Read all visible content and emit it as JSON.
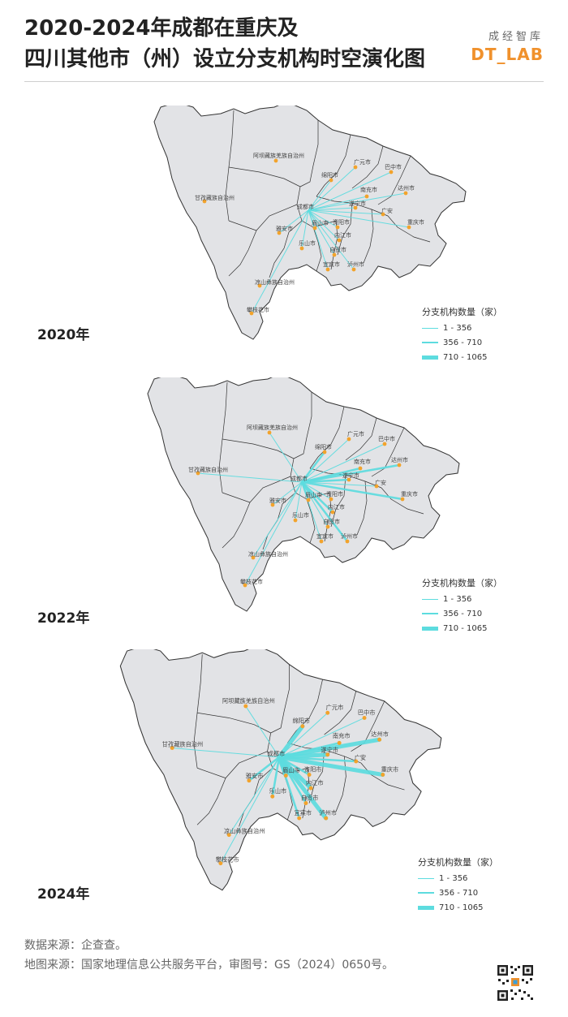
{
  "header": {
    "title_line1": "2020-2024年成都在重庆及",
    "title_line2": "四川其他市（州）设立分支机构时空演化图",
    "brand_cn": "成经智库",
    "brand_en": "DT_LAB"
  },
  "colors": {
    "map_fill": "#e2e3e6",
    "border": "#333333",
    "flow_line": "#5ddcdf",
    "dot": "#f2a32c",
    "brand": "#f0912c"
  },
  "map_labels": [
    {
      "id": "aba",
      "text": "阿坝藏族羌族自治州"
    },
    {
      "id": "garze",
      "text": "甘孜藏族自治州"
    },
    {
      "id": "guangyuan",
      "text": "广元市"
    },
    {
      "id": "bazhong",
      "text": "巴中市"
    },
    {
      "id": "mianyang",
      "text": "绵阳市"
    },
    {
      "id": "nanchong",
      "text": "南充市"
    },
    {
      "id": "dazhou",
      "text": "达州市"
    },
    {
      "id": "chengdu",
      "text": "成都市"
    },
    {
      "id": "suining",
      "text": "遂宁市"
    },
    {
      "id": "guangan",
      "text": "广安"
    },
    {
      "id": "yaan",
      "text": "雅安市"
    },
    {
      "id": "meishan",
      "text": "眉山市"
    },
    {
      "id": "ziyang",
      "text": "资阳市"
    },
    {
      "id": "chongqing",
      "text": "重庆市"
    },
    {
      "id": "leshan",
      "text": "乐山市"
    },
    {
      "id": "neijiang",
      "text": "内江市"
    },
    {
      "id": "zigong",
      "text": "自贡市"
    },
    {
      "id": "yibin",
      "text": "宜宾市"
    },
    {
      "id": "luzhou",
      "text": "泸州市"
    },
    {
      "id": "liangshan",
      "text": "凉山彝族自治州"
    },
    {
      "id": "panzhihua",
      "text": "攀枝花市"
    }
  ],
  "legend": {
    "title": "分支机构数量（家）",
    "classes": [
      "1 - 356",
      "356 - 710",
      "710 - 1065"
    ],
    "class_widths": [
      1,
      2.5,
      5
    ]
  },
  "panels": [
    {
      "year": "2020年",
      "flows": [
        {
          "to": "mianyang",
          "cls": 0
        },
        {
          "to": "guangyuan",
          "cls": 0
        },
        {
          "to": "bazhong",
          "cls": 0
        },
        {
          "to": "nanchong",
          "cls": 0
        },
        {
          "to": "dazhou",
          "cls": 0
        },
        {
          "to": "suining",
          "cls": 0
        },
        {
          "to": "guangan",
          "cls": 0
        },
        {
          "to": "chongqing",
          "cls": 0
        },
        {
          "to": "yaan",
          "cls": 0
        },
        {
          "to": "meishan",
          "cls": 0
        },
        {
          "to": "ziyang",
          "cls": 0
        },
        {
          "to": "leshan",
          "cls": 0
        },
        {
          "to": "neijiang",
          "cls": 0
        },
        {
          "to": "zigong",
          "cls": 0
        },
        {
          "to": "yibin",
          "cls": 0
        },
        {
          "to": "luzhou",
          "cls": 0
        },
        {
          "to": "panzhihua",
          "cls": 0
        }
      ]
    },
    {
      "year": "2022年",
      "flows": [
        {
          "to": "mianyang",
          "cls": 1
        },
        {
          "to": "guangyuan",
          "cls": 0
        },
        {
          "to": "bazhong",
          "cls": 0
        },
        {
          "to": "nanchong",
          "cls": 1
        },
        {
          "to": "dazhou",
          "cls": 1
        },
        {
          "to": "suining",
          "cls": 1
        },
        {
          "to": "guangan",
          "cls": 0
        },
        {
          "to": "chongqing",
          "cls": 1
        },
        {
          "to": "yaan",
          "cls": 0
        },
        {
          "to": "meishan",
          "cls": 1
        },
        {
          "to": "ziyang",
          "cls": 0
        },
        {
          "to": "leshan",
          "cls": 0
        },
        {
          "to": "neijiang",
          "cls": 1
        },
        {
          "to": "zigong",
          "cls": 0
        },
        {
          "to": "yibin",
          "cls": 0
        },
        {
          "to": "luzhou",
          "cls": 1
        },
        {
          "to": "aba",
          "cls": 0
        },
        {
          "to": "garze",
          "cls": 0
        },
        {
          "to": "liangshan",
          "cls": 0
        },
        {
          "to": "panzhihua",
          "cls": 0
        }
      ]
    },
    {
      "year": "2024年",
      "flows": [
        {
          "to": "mianyang",
          "cls": 2
        },
        {
          "to": "guangyuan",
          "cls": 0
        },
        {
          "to": "bazhong",
          "cls": 0
        },
        {
          "to": "nanchong",
          "cls": 1
        },
        {
          "to": "dazhou",
          "cls": 2
        },
        {
          "to": "suining",
          "cls": 2
        },
        {
          "to": "guangan",
          "cls": 1
        },
        {
          "to": "chongqing",
          "cls": 2
        },
        {
          "to": "yaan",
          "cls": 1
        },
        {
          "to": "meishan",
          "cls": 2
        },
        {
          "to": "ziyang",
          "cls": 1
        },
        {
          "to": "leshan",
          "cls": 1
        },
        {
          "to": "neijiang",
          "cls": 2
        },
        {
          "to": "zigong",
          "cls": 1
        },
        {
          "to": "yibin",
          "cls": 1
        },
        {
          "to": "luzhou",
          "cls": 2
        },
        {
          "to": "aba",
          "cls": 0
        },
        {
          "to": "garze",
          "cls": 0
        },
        {
          "to": "liangshan",
          "cls": 0
        },
        {
          "to": "panzhihua",
          "cls": 0
        }
      ]
    }
  ],
  "footer": {
    "data_source": "数据来源：企查查。",
    "map_source": "地图来源：国家地理信息公共服务平台，审图号：GS（2024）0650号。"
  }
}
